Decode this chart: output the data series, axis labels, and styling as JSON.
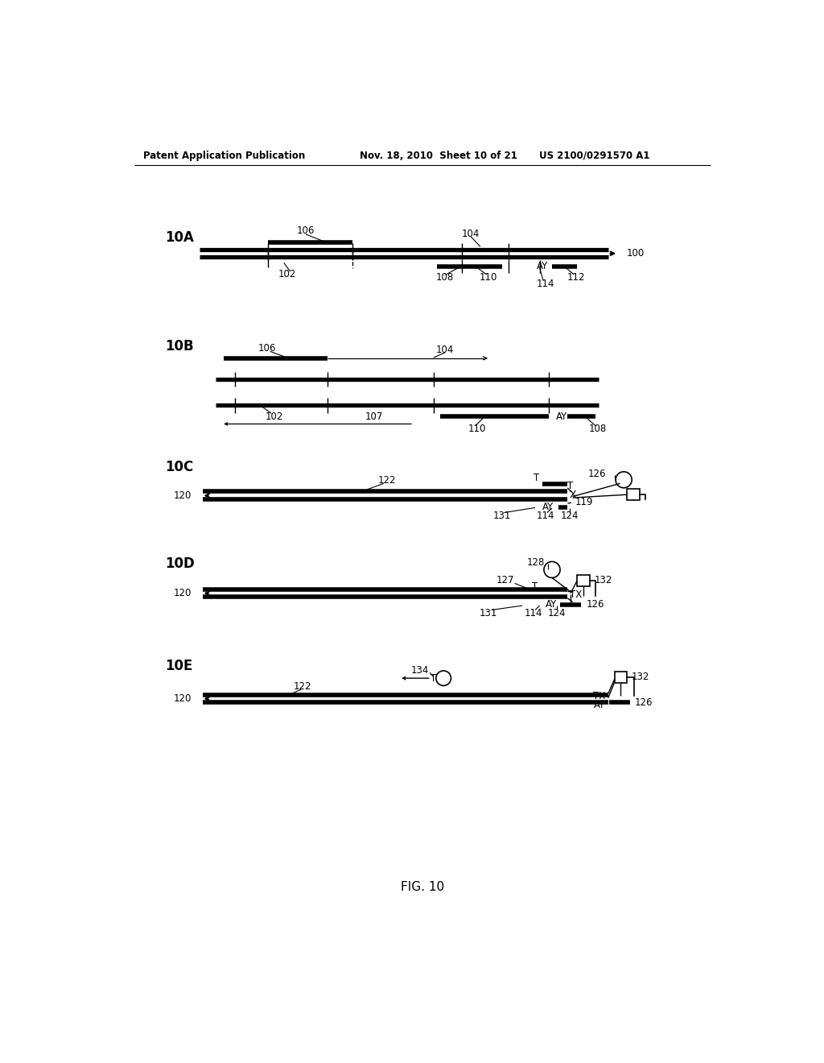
{
  "header_left": "Patent Application Publication",
  "header_mid": "Nov. 18, 2010  Sheet 10 of 21",
  "header_right": "US 2100/0291570 A1",
  "footer": "FIG. 10",
  "bg_color": "#ffffff"
}
